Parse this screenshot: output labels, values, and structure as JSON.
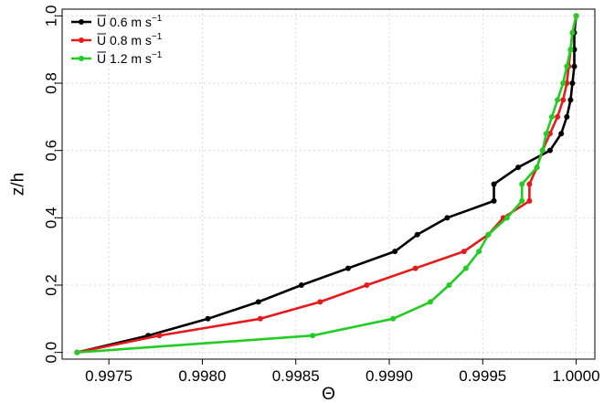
{
  "chart_data": {
    "type": "line",
    "xlabel": "Θ",
    "ylabel": "z/h",
    "xlim": [
      0.99725,
      1.0001
    ],
    "ylim": [
      -0.02,
      1.02
    ],
    "x_ticks": [
      0.9975,
      0.998,
      0.9985,
      0.999,
      0.9995,
      1.0
    ],
    "x_tick_labels": [
      "0.9975",
      "0.9980",
      "0.9985",
      "0.9990",
      "0.9995",
      "1.0000"
    ],
    "y_ticks": [
      0.0,
      0.2,
      0.4,
      0.6,
      0.8,
      1.0
    ],
    "y_tick_labels": [
      "0.0",
      "0.2",
      "0.4",
      "0.6",
      "0.8",
      "1.0"
    ],
    "grid": true,
    "legend_position": "top-left",
    "series": [
      {
        "name": "U̅ 0.6 m s⁻¹",
        "legend_main": "U",
        "legend_unit": "0.6 m s",
        "legend_exp": "−1",
        "color": "#000000",
        "x": [
          0.99733,
          0.99771,
          0.99803,
          0.9983,
          0.99853,
          0.99878,
          0.99903,
          0.99915,
          0.99931,
          0.99956,
          0.99956,
          0.99969,
          0.99986,
          0.99992,
          0.99995,
          0.99997,
          0.99998,
          0.99999,
          0.99999,
          0.99999,
          1.0
        ],
        "y": [
          0.0,
          0.05,
          0.1,
          0.15,
          0.2,
          0.25,
          0.3,
          0.35,
          0.4,
          0.45,
          0.5,
          0.55,
          0.6,
          0.65,
          0.7,
          0.75,
          0.8,
          0.85,
          0.9,
          0.95,
          1.0
        ]
      },
      {
        "name": "U̅ 0.8 m s⁻¹",
        "legend_main": "U",
        "legend_unit": "0.8 m s",
        "legend_exp": "−1",
        "color": "#e41a1c",
        "x": [
          0.99733,
          0.99777,
          0.99831,
          0.99863,
          0.99888,
          0.99914,
          0.9994,
          0.99953,
          0.99961,
          0.99975,
          0.99975,
          0.99979,
          0.99982,
          0.99986,
          0.9999,
          0.99993,
          0.99995,
          0.99996,
          0.99997,
          0.99998,
          1.0
        ],
        "y": [
          0.0,
          0.05,
          0.1,
          0.15,
          0.2,
          0.25,
          0.3,
          0.35,
          0.4,
          0.45,
          0.5,
          0.55,
          0.6,
          0.65,
          0.7,
          0.75,
          0.8,
          0.85,
          0.9,
          0.95,
          1.0
        ]
      },
      {
        "name": "U̅ 1.2 m s⁻¹",
        "legend_main": "U",
        "legend_unit": "1.2 m s",
        "legend_exp": "−1",
        "color": "#22cc22",
        "x": [
          0.99733,
          0.99859,
          0.99902,
          0.99922,
          0.99932,
          0.99941,
          0.99948,
          0.99953,
          0.99963,
          0.99971,
          0.99971,
          0.99979,
          0.99982,
          0.99984,
          0.99987,
          0.9999,
          0.99993,
          0.99995,
          0.99997,
          0.99998,
          1.0
        ],
        "y": [
          0.0,
          0.05,
          0.1,
          0.15,
          0.2,
          0.25,
          0.3,
          0.35,
          0.4,
          0.45,
          0.5,
          0.55,
          0.6,
          0.65,
          0.7,
          0.75,
          0.8,
          0.85,
          0.9,
          0.95,
          1.0
        ]
      }
    ]
  }
}
